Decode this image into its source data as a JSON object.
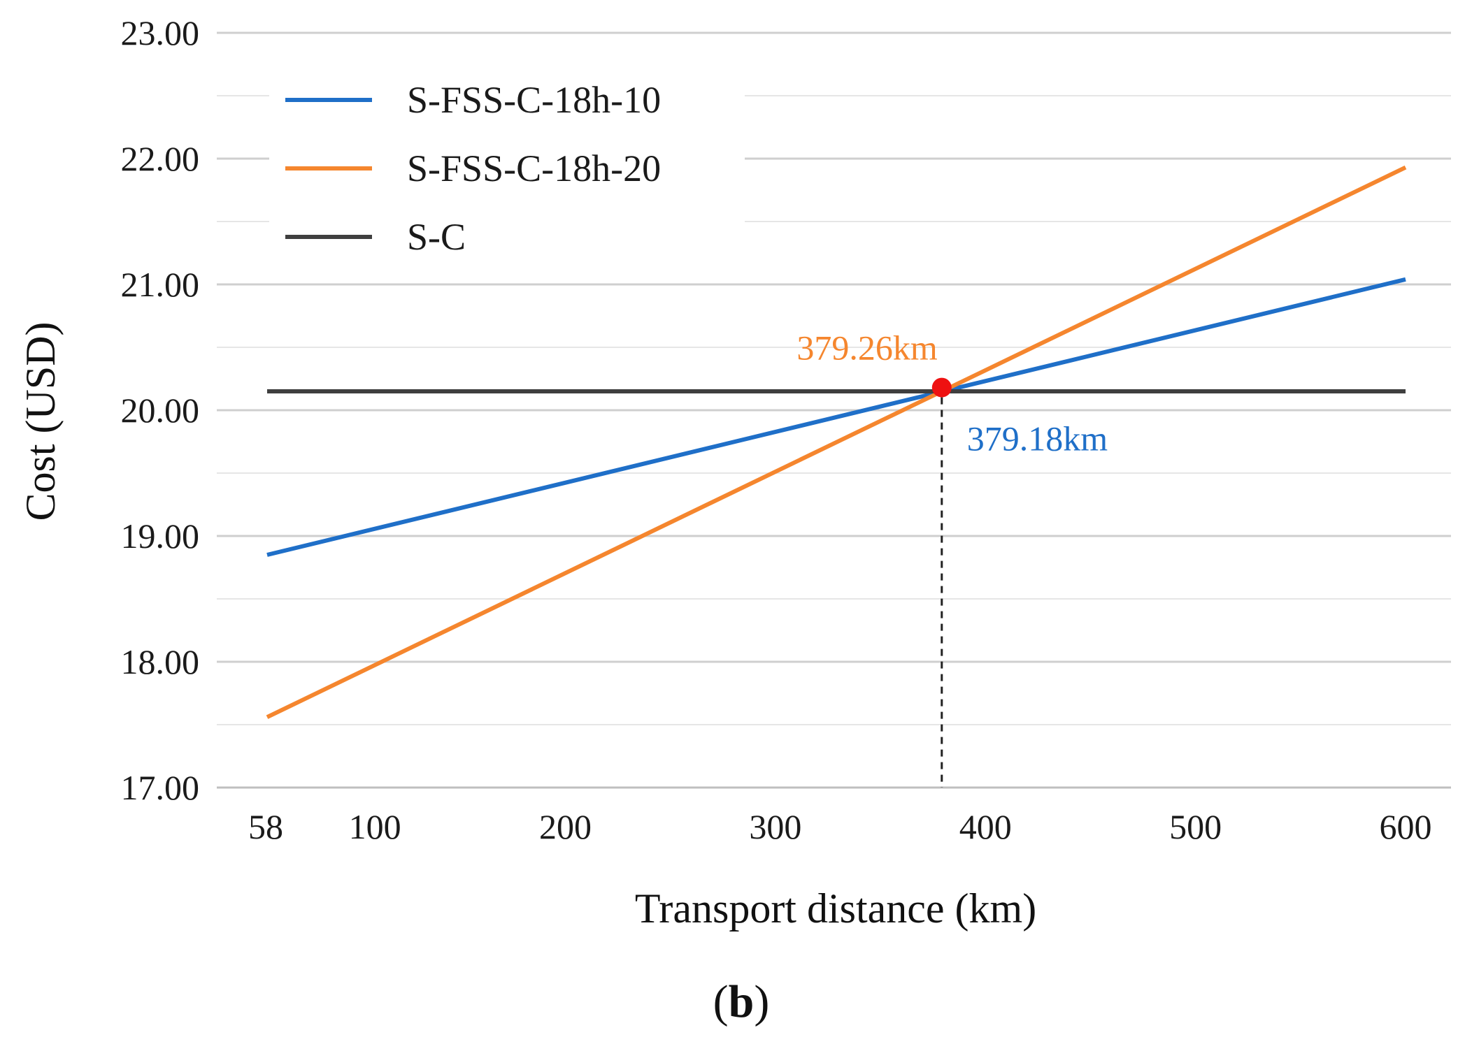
{
  "chart_data": {
    "type": "line",
    "title": "",
    "xlabel": "Transport distance (km)",
    "ylabel": "Cost (USD)",
    "panel_label": "b",
    "xlim": [
      58,
      600
    ],
    "ylim": [
      17,
      23
    ],
    "x_ticks": [
      58,
      100,
      200,
      300,
      400,
      500,
      600
    ],
    "x_tick_labels": [
      "58",
      "100",
      "200",
      "300",
      "400",
      "500",
      "600"
    ],
    "y_ticks": [
      17,
      18,
      19,
      20,
      21,
      22,
      23
    ],
    "y_tick_labels": [
      "17.00",
      "18.00",
      "19.00",
      "20.00",
      "21.00",
      "22.00",
      "23.00"
    ],
    "grid": "horizontal",
    "legend_position": "top-left",
    "series": [
      {
        "name": "S-FSS-C-18h-10",
        "color": "#1f6fc8",
        "x": [
          58,
          600
        ],
        "y": [
          18.85,
          21.04
        ]
      },
      {
        "name": "S-FSS-C-18h-20",
        "color": "#f5862e",
        "x": [
          58,
          600
        ],
        "y": [
          17.56,
          21.93
        ]
      },
      {
        "name": "S-C",
        "color": "#3f3f3f",
        "x": [
          58,
          600
        ],
        "y": [
          20.15,
          20.15
        ]
      }
    ],
    "marker": {
      "x": 379.2,
      "y": 20.18,
      "color": "#ee1111"
    },
    "annotations": [
      {
        "text": "379.26km",
        "color": "#f5862e"
      },
      {
        "text": "379.18km",
        "color": "#1f6fc8"
      }
    ]
  }
}
